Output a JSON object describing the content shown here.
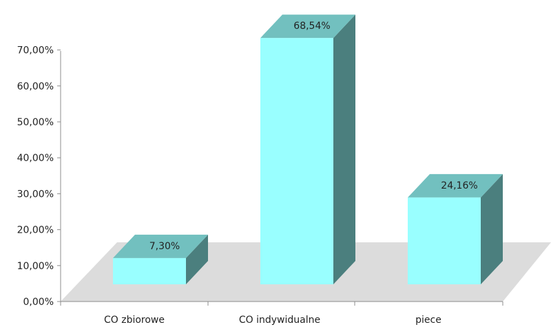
{
  "chart_data": {
    "type": "bar",
    "categories": [
      "CO zbiorowe",
      "CO indywidualne",
      "piece"
    ],
    "values": [
      7.3,
      68.54,
      24.16
    ],
    "value_labels": [
      "7,30%",
      "68,54%",
      "24,16%"
    ],
    "ylim": [
      0,
      70
    ],
    "yticks": [
      0,
      10,
      20,
      30,
      40,
      50,
      60,
      70
    ],
    "ytick_labels": [
      "0,00%",
      "10,00%",
      "20,00%",
      "30,00%",
      "40,00%",
      "50,00%",
      "60,00%",
      "70,00%"
    ],
    "title": "",
    "xlabel": "",
    "ylabel": "",
    "grid": false,
    "style": "3d-column",
    "colors": {
      "bar_front": "#99ffff",
      "bar_top": "#72c0bf",
      "bar_side": "#4b7f7e",
      "floor": "#dcdcdc",
      "axis": "#8c8c8c"
    }
  }
}
